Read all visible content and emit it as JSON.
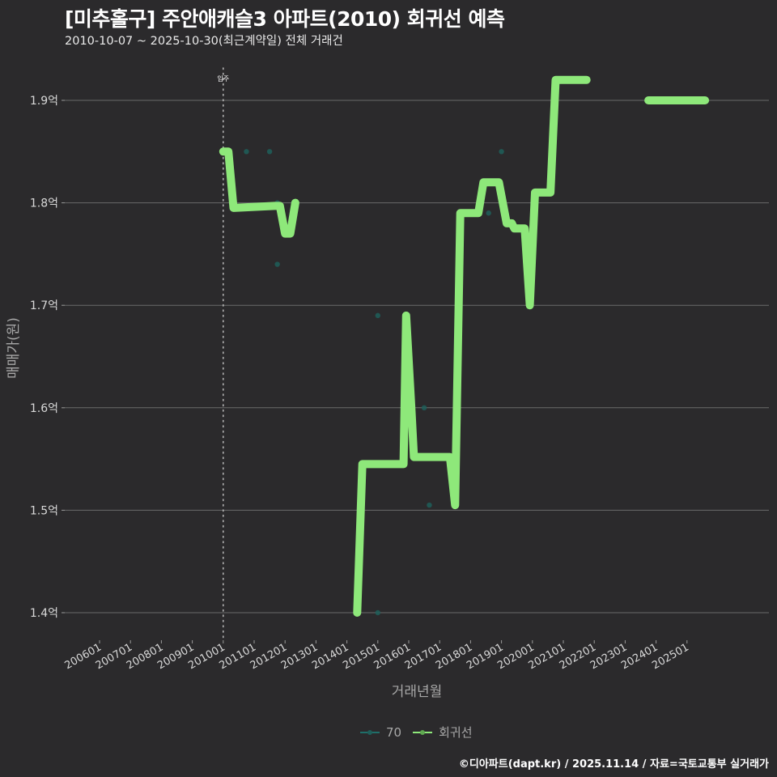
{
  "header": {
    "title": "[미추홀구] 주안애캐슬3 아파트(2010) 회귀선 예측",
    "subtitle": "2010-10-07 ~ 2025-10-30(최근계약일) 전체 거래건"
  },
  "legend": {
    "items": [
      {
        "label": "70",
        "color": "#1f6f6a"
      },
      {
        "label": "회귀선",
        "color": "#8ee87a"
      }
    ]
  },
  "caption": "©디아파트(dapt.kr) / 2025.11.14 / 자료=국토교통부 실거래가",
  "colors": {
    "background": "#2b2a2c",
    "regression": "#8ee87a",
    "points": "#1f5f5a",
    "grid": "#6a6a6a"
  },
  "chart_data": {
    "type": "line",
    "title": "[미추홀구] 주안애캐슬3 아파트(2010) 회귀선 예측",
    "subtitle": "2010-10-07 ~ 2025-10-30(최근계약일) 전체 거래건",
    "xlabel": "거래년월",
    "ylabel": "매매가(원)",
    "x_ticks": [
      "200601",
      "200701",
      "200801",
      "200901",
      "201001",
      "201101",
      "201201",
      "201301",
      "201401",
      "201501",
      "201601",
      "201701",
      "201801",
      "201901",
      "202001",
      "202101",
      "202201",
      "202301",
      "202401",
      "202501"
    ],
    "y_ticks": [
      "1.4억",
      "1.5억",
      "1.6억",
      "1.7억",
      "1.8억",
      "1.9억"
    ],
    "ylim": [
      1.38,
      1.95
    ],
    "grid": "horizontal",
    "legend_position": "bottom",
    "annotations": [
      {
        "label": "입주",
        "x": "201001",
        "style": "dotted vertical line"
      }
    ],
    "series": [
      {
        "name": "70",
        "type": "scatter",
        "points": [
          {
            "x": "2010-10",
            "y": 1.85
          },
          {
            "x": "2011-07",
            "y": 1.85
          },
          {
            "x": "2011-10",
            "y": 1.8
          },
          {
            "x": "2011-10",
            "y": 1.74
          },
          {
            "x": "2015-01",
            "y": 1.69
          },
          {
            "x": "2015-01",
            "y": 1.4
          },
          {
            "x": "2016-07",
            "y": 1.6
          },
          {
            "x": "2016-09",
            "y": 1.505
          },
          {
            "x": "2018-08",
            "y": 1.79
          },
          {
            "x": "2019-01",
            "y": 1.85
          }
        ]
      },
      {
        "name": "회귀선",
        "type": "line",
        "segments": [
          [
            {
              "x": "2010-01",
              "y": 1.85
            },
            {
              "x": "2010-03",
              "y": 1.85
            },
            {
              "x": "2010-05",
              "y": 1.795
            },
            {
              "x": "2011-09",
              "y": 1.797
            },
            {
              "x": "2011-11",
              "y": 1.797
            },
            {
              "x": "2012-01",
              "y": 1.77
            },
            {
              "x": "2012-03",
              "y": 1.77
            },
            {
              "x": "2012-05",
              "y": 1.8
            }
          ],
          [
            {
              "x": "2014-05",
              "y": 1.4
            },
            {
              "x": "2014-07",
              "y": 1.545
            },
            {
              "x": "2015-11",
              "y": 1.545
            },
            {
              "x": "2015-12",
              "y": 1.69
            },
            {
              "x": "2016-02",
              "y": 1.6
            },
            {
              "x": "2016-03",
              "y": 1.552
            },
            {
              "x": "2017-05",
              "y": 1.552
            },
            {
              "x": "2017-07",
              "y": 1.505
            },
            {
              "x": "2017-09",
              "y": 1.79
            },
            {
              "x": "2018-04",
              "y": 1.79
            },
            {
              "x": "2018-06",
              "y": 1.82
            },
            {
              "x": "2018-12",
              "y": 1.82
            },
            {
              "x": "2019-03",
              "y": 1.78
            },
            {
              "x": "2019-05",
              "y": 1.78
            },
            {
              "x": "2019-06",
              "y": 1.775
            },
            {
              "x": "2019-10",
              "y": 1.775
            },
            {
              "x": "2019-12",
              "y": 1.7
            },
            {
              "x": "2020-02",
              "y": 1.81
            },
            {
              "x": "2020-08",
              "y": 1.81
            },
            {
              "x": "2020-10",
              "y": 1.92
            },
            {
              "x": "2021-10",
              "y": 1.92
            }
          ],
          [
            {
              "x": "2023-10",
              "y": 1.9
            },
            {
              "x": "2025-08",
              "y": 1.9
            }
          ]
        ]
      }
    ]
  }
}
